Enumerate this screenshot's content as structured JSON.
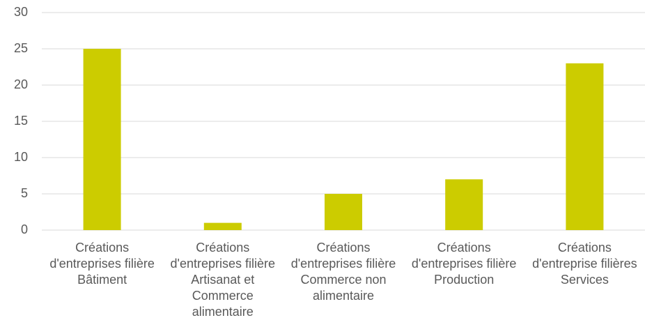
{
  "chart_data": {
    "type": "bar",
    "categories": [
      "Créations d'entreprises filière Bâtiment",
      "Créations d'entreprises filière Artisanat et Commerce alimentaire",
      "Créations d'entreprises filière Commerce non alimentaire",
      "Créations d'entreprises filière Production",
      "Créations d'entreprise filières Services"
    ],
    "values": [
      25,
      1,
      5,
      7,
      23
    ],
    "color": "#cccc00",
    "ylim": [
      0,
      30
    ],
    "yticks": [
      0,
      5,
      10,
      15,
      20,
      25,
      30
    ],
    "grid": true
  }
}
